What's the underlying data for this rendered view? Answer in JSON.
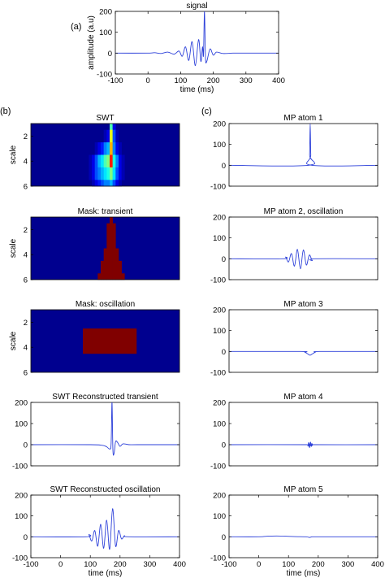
{
  "panel_labels": {
    "a": "(a)",
    "b": "(b)",
    "c": "(c)"
  },
  "colors": {
    "line": "#2b3fd9",
    "heat_low": "#00008f",
    "heat_high": "#800000"
  },
  "chart_data": [
    {
      "id": "signal",
      "type": "line",
      "title": "signal",
      "xlabel": "time (ms)",
      "ylabel": "amplitude (a.u)",
      "xlim": [
        -100,
        400
      ],
      "ylim": [
        -100,
        200
      ],
      "xticks": [
        -100,
        0,
        100,
        200,
        300,
        400
      ],
      "yticks": [
        -100,
        0,
        100,
        200
      ],
      "grid": false,
      "series": [
        {
          "x": [
            -100,
            0,
            20,
            40,
            60,
            80,
            95,
            105,
            115,
            125,
            135,
            145,
            155,
            162,
            167,
            170,
            173,
            176,
            180,
            190,
            200,
            210,
            230,
            260,
            300,
            400
          ],
          "y": [
            0,
            0,
            2,
            -2,
            5,
            -5,
            10,
            -15,
            30,
            -35,
            55,
            -60,
            65,
            -40,
            30,
            -10,
            200,
            -20,
            -40,
            20,
            -10,
            5,
            -2,
            0,
            0,
            0
          ]
        }
      ]
    },
    {
      "id": "swt",
      "type": "heatmap",
      "title": "SWT",
      "ylabel": "scale",
      "xlim": [
        -100,
        400
      ],
      "ylim": [
        1,
        6
      ],
      "yticks": [
        2,
        4,
        6
      ],
      "rows": [
        1,
        2,
        3,
        4,
        5,
        6
      ],
      "x": [
        80,
        90,
        100,
        110,
        120,
        130,
        140,
        150,
        160,
        170,
        180,
        190,
        200,
        210,
        220
      ],
      "values": [
        [
          0.0,
          0.0,
          0.0,
          0.0,
          0.0,
          0.0,
          0.0,
          0.0,
          0.0,
          0.45,
          0.1,
          0.0,
          0.0,
          0.0,
          0.0
        ],
        [
          0.0,
          0.0,
          0.0,
          0.0,
          0.0,
          0.0,
          0.0,
          0.05,
          0.1,
          0.6,
          0.2,
          0.05,
          0.0,
          0.0,
          0.0
        ],
        [
          0.0,
          0.0,
          0.0,
          0.0,
          0.05,
          0.1,
          0.15,
          0.25,
          0.3,
          0.7,
          0.25,
          0.1,
          0.05,
          0.0,
          0.0
        ],
        [
          0.0,
          0.0,
          0.05,
          0.1,
          0.2,
          0.3,
          0.35,
          0.45,
          0.5,
          0.85,
          0.4,
          0.25,
          0.1,
          0.05,
          0.0
        ],
        [
          0.0,
          0.0,
          0.05,
          0.1,
          0.2,
          0.25,
          0.3,
          0.35,
          0.4,
          0.5,
          0.35,
          0.2,
          0.1,
          0.05,
          0.0
        ],
        [
          0.0,
          0.0,
          0.0,
          0.05,
          0.1,
          0.15,
          0.2,
          0.25,
          0.25,
          0.3,
          0.2,
          0.1,
          0.05,
          0.0,
          0.0
        ]
      ]
    },
    {
      "id": "mask-transient",
      "type": "heatmap",
      "title": "Mask: transient",
      "ylabel": "scale",
      "xlim": [
        -100,
        400
      ],
      "ylim": [
        1,
        6
      ],
      "yticks": [
        2,
        4,
        6
      ],
      "rows": [
        1,
        2,
        3,
        4,
        5,
        6
      ],
      "x": [
        130,
        140,
        150,
        160,
        170,
        180,
        190,
        200,
        210
      ],
      "values": [
        [
          0,
          0,
          0,
          0,
          1,
          0,
          0,
          0,
          0
        ],
        [
          0,
          0,
          0,
          1,
          1,
          1,
          0,
          0,
          0
        ],
        [
          0,
          0,
          0,
          1,
          1,
          1,
          0,
          0,
          0
        ],
        [
          0,
          0,
          1,
          1,
          1,
          1,
          1,
          0,
          0
        ],
        [
          0,
          1,
          1,
          1,
          1,
          1,
          1,
          1,
          0
        ],
        [
          1,
          1,
          1,
          1,
          1,
          1,
          1,
          1,
          1
        ]
      ]
    },
    {
      "id": "mask-oscillation",
      "type": "heatmap",
      "title": "Mask: oscillation",
      "ylabel": "scale",
      "xlim": [
        -100,
        400
      ],
      "ylim": [
        1,
        6
      ],
      "yticks": [
        2,
        4,
        6
      ],
      "rows": [
        1,
        2,
        3,
        4,
        5,
        6
      ],
      "x": [
        90,
        120,
        150,
        180,
        210,
        240
      ],
      "values": [
        [
          0,
          0,
          0,
          0,
          0,
          0
        ],
        [
          0,
          0,
          0,
          0,
          0,
          0
        ],
        [
          1,
          1,
          1,
          1,
          1,
          1
        ],
        [
          1,
          1,
          1,
          1,
          1,
          1
        ],
        [
          0,
          0,
          0,
          0,
          0,
          0
        ],
        [
          0,
          0,
          0,
          0,
          0,
          0
        ]
      ]
    },
    {
      "id": "swt-transient",
      "type": "line",
      "title": "SWT Reconstructed transient",
      "xlim": [
        -100,
        400
      ],
      "ylim": [
        -100,
        200
      ],
      "yticks": [
        -100,
        0,
        100,
        200
      ],
      "series": [
        {
          "x": [
            -100,
            100,
            140,
            155,
            165,
            170,
            173,
            176,
            180,
            185,
            192,
            200,
            210,
            230,
            260,
            400
          ],
          "y": [
            0,
            0,
            -3,
            -10,
            -20,
            5,
            200,
            -25,
            -40,
            15,
            10,
            -8,
            4,
            0,
            0,
            0
          ]
        }
      ]
    },
    {
      "id": "swt-oscillation",
      "type": "line",
      "title": "SWT Reconstructed oscillation",
      "xlabel": "time (ms)",
      "xlim": [
        -100,
        400
      ],
      "ylim": [
        -100,
        200
      ],
      "xticks": [
        -100,
        0,
        100,
        200,
        300,
        400
      ],
      "yticks": [
        -100,
        0,
        100,
        200
      ],
      "series": [
        {
          "x": [
            -100,
            85,
            95,
            105,
            115,
            125,
            135,
            145,
            155,
            165,
            175,
            185,
            195,
            205,
            215,
            230,
            400
          ],
          "y": [
            0,
            0,
            10,
            -20,
            30,
            -45,
            60,
            -55,
            80,
            -60,
            135,
            -45,
            30,
            -10,
            5,
            0,
            0
          ]
        }
      ]
    },
    {
      "id": "mp-atom-1",
      "type": "line",
      "title": "MP atom 1",
      "xlim": [
        -100,
        400
      ],
      "ylim": [
        -100,
        200
      ],
      "yticks": [
        -100,
        0,
        100,
        200
      ],
      "series": [
        {
          "x": [
            -100,
            168,
            171,
            173,
            175,
            178,
            400
          ],
          "y": [
            0,
            0,
            50,
            200,
            50,
            0,
            0
          ]
        }
      ]
    },
    {
      "id": "mp-atom-2",
      "type": "line",
      "title": "MP atom 2, oscillation",
      "xlim": [
        -100,
        400
      ],
      "ylim": [
        -100,
        200
      ],
      "yticks": [
        -100,
        0,
        100,
        200
      ],
      "series": [
        {
          "x": [
            -100,
            80,
            90,
            100,
            110,
            120,
            130,
            140,
            150,
            160,
            170,
            180,
            190,
            400
          ],
          "y": [
            0,
            0,
            8,
            -15,
            25,
            -35,
            45,
            -48,
            42,
            -30,
            18,
            -8,
            0,
            0
          ]
        }
      ]
    },
    {
      "id": "mp-atom-3",
      "type": "line",
      "title": "MP atom 3",
      "xlim": [
        -100,
        400
      ],
      "ylim": [
        -100,
        200
      ],
      "yticks": [
        -100,
        0,
        100,
        200
      ],
      "series": [
        {
          "x": [
            -100,
            140,
            155,
            165,
            172,
            180,
            190,
            205,
            400
          ],
          "y": [
            0,
            0,
            -4,
            -12,
            -18,
            -12,
            -4,
            0,
            0
          ]
        }
      ]
    },
    {
      "id": "mp-atom-4",
      "type": "line",
      "title": "MP atom 4",
      "xlim": [
        -100,
        400
      ],
      "ylim": [
        -100,
        200
      ],
      "yticks": [
        -100,
        0,
        100,
        200
      ],
      "series": [
        {
          "x": [
            -100,
            160,
            165,
            168,
            171,
            174,
            177,
            180,
            185,
            400
          ],
          "y": [
            0,
            0,
            -6,
            10,
            -14,
            12,
            -8,
            4,
            0,
            0
          ]
        }
      ]
    },
    {
      "id": "mp-atom-5",
      "type": "line",
      "title": "MP atom 5",
      "xlabel": "time (ms)",
      "xlim": [
        -100,
        400
      ],
      "ylim": [
        -100,
        200
      ],
      "xticks": [
        -100,
        0,
        100,
        200,
        300,
        400
      ],
      "yticks": [
        -100,
        0,
        100,
        200
      ],
      "series": [
        {
          "x": [
            -100,
            0,
            30,
            60,
            90,
            120,
            160,
            170,
            180,
            200,
            400
          ],
          "y": [
            0,
            0,
            3,
            4,
            3,
            1,
            0,
            -3,
            0,
            0,
            0
          ]
        }
      ]
    }
  ]
}
